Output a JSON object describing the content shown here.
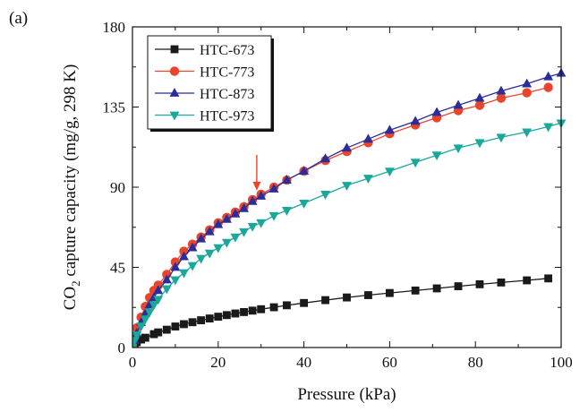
{
  "panel_label": "(a)",
  "chart_data": {
    "type": "line",
    "title": "",
    "xlabel": "Pressure (kPa)",
    "ylabel_parts": {
      "prefix": "CO",
      "subscript": "2",
      "suffix": " capture capacity (mg/g, 298 K)"
    },
    "xlim": [
      0,
      100
    ],
    "ylim": [
      0,
      180
    ],
    "xticks": [
      "0",
      "20",
      "40",
      "60",
      "80",
      "100"
    ],
    "yticks": [
      "0",
      "45",
      "90",
      "135",
      "180"
    ],
    "grid": false,
    "legend_position": "top-left",
    "annotation": {
      "type": "arrow",
      "x": 29,
      "y": 83,
      "color": "#e8452a"
    },
    "series": [
      {
        "name": "HTC-673",
        "color": "#1a1a1a",
        "marker": "square",
        "x": [
          0,
          0.5,
          1,
          2,
          3,
          5,
          6,
          8,
          10,
          12,
          14,
          16,
          18,
          20,
          22,
          24,
          26,
          28,
          30,
          33,
          36,
          40,
          45,
          50,
          55,
          60,
          66,
          71,
          76,
          81,
          86,
          92,
          97
        ],
        "y": [
          0,
          2,
          3,
          4.5,
          5.5,
          7.5,
          8.5,
          10,
          11.8,
          13.1,
          14.2,
          15.3,
          16.3,
          17.3,
          18.2,
          19.1,
          19.9,
          20.7,
          21.5,
          22.6,
          23.7,
          25,
          26.6,
          28.1,
          29.4,
          30.6,
          32,
          33.2,
          34.4,
          35.5,
          36.5,
          37.7,
          38.8
        ]
      },
      {
        "name": "HTC-773",
        "color": "#e8452a",
        "marker": "circle",
        "x": [
          0,
          0.5,
          1,
          2,
          3,
          4,
          5,
          6,
          8,
          10,
          12,
          14,
          16,
          18,
          20,
          22,
          24,
          26,
          28,
          30,
          33,
          36,
          40,
          45,
          50,
          55,
          60,
          66,
          71,
          76,
          81,
          86,
          92,
          97
        ],
        "y": [
          0,
          6,
          11,
          17,
          23,
          28,
          32,
          35,
          41,
          48,
          54,
          58,
          62,
          66,
          70,
          73,
          76,
          79,
          83,
          86,
          90,
          94,
          99,
          105,
          110,
          115,
          120,
          125,
          129,
          133,
          136,
          140,
          143,
          146
        ]
      },
      {
        "name": "HTC-873",
        "color": "#2b2d9a",
        "marker": "triangle-up",
        "x": [
          0,
          0.5,
          1,
          2,
          3,
          4,
          5,
          6,
          8,
          10,
          12,
          14,
          16,
          18,
          20,
          22,
          24,
          26,
          28,
          30,
          33,
          36,
          40,
          45,
          50,
          55,
          60,
          66,
          71,
          76,
          81,
          86,
          92,
          97,
          100
        ],
        "y": [
          0,
          4,
          8,
          14,
          19,
          24,
          28,
          32,
          38,
          45,
          51,
          56,
          61,
          65,
          69,
          72,
          75,
          78,
          82,
          85,
          89,
          94,
          99,
          106,
          112,
          117,
          122,
          127,
          132,
          136,
          140,
          144,
          148,
          152,
          154
        ]
      },
      {
        "name": "HTC-973",
        "color": "#1aa89b",
        "marker": "triangle-down",
        "x": [
          0,
          0.5,
          1,
          2,
          3,
          4,
          5,
          6,
          8,
          10,
          12,
          14,
          16,
          18,
          20,
          22,
          24,
          26,
          28,
          30,
          33,
          36,
          40,
          45,
          50,
          55,
          60,
          66,
          71,
          76,
          81,
          86,
          92,
          97,
          100
        ],
        "y": [
          0,
          4,
          7,
          12,
          16,
          20,
          24,
          27,
          33,
          38,
          42,
          46,
          50,
          53,
          56,
          59,
          62,
          65,
          68,
          70,
          74,
          77,
          81,
          86,
          91,
          95,
          99,
          104,
          108,
          112,
          115,
          118,
          121,
          124,
          126
        ]
      }
    ]
  }
}
